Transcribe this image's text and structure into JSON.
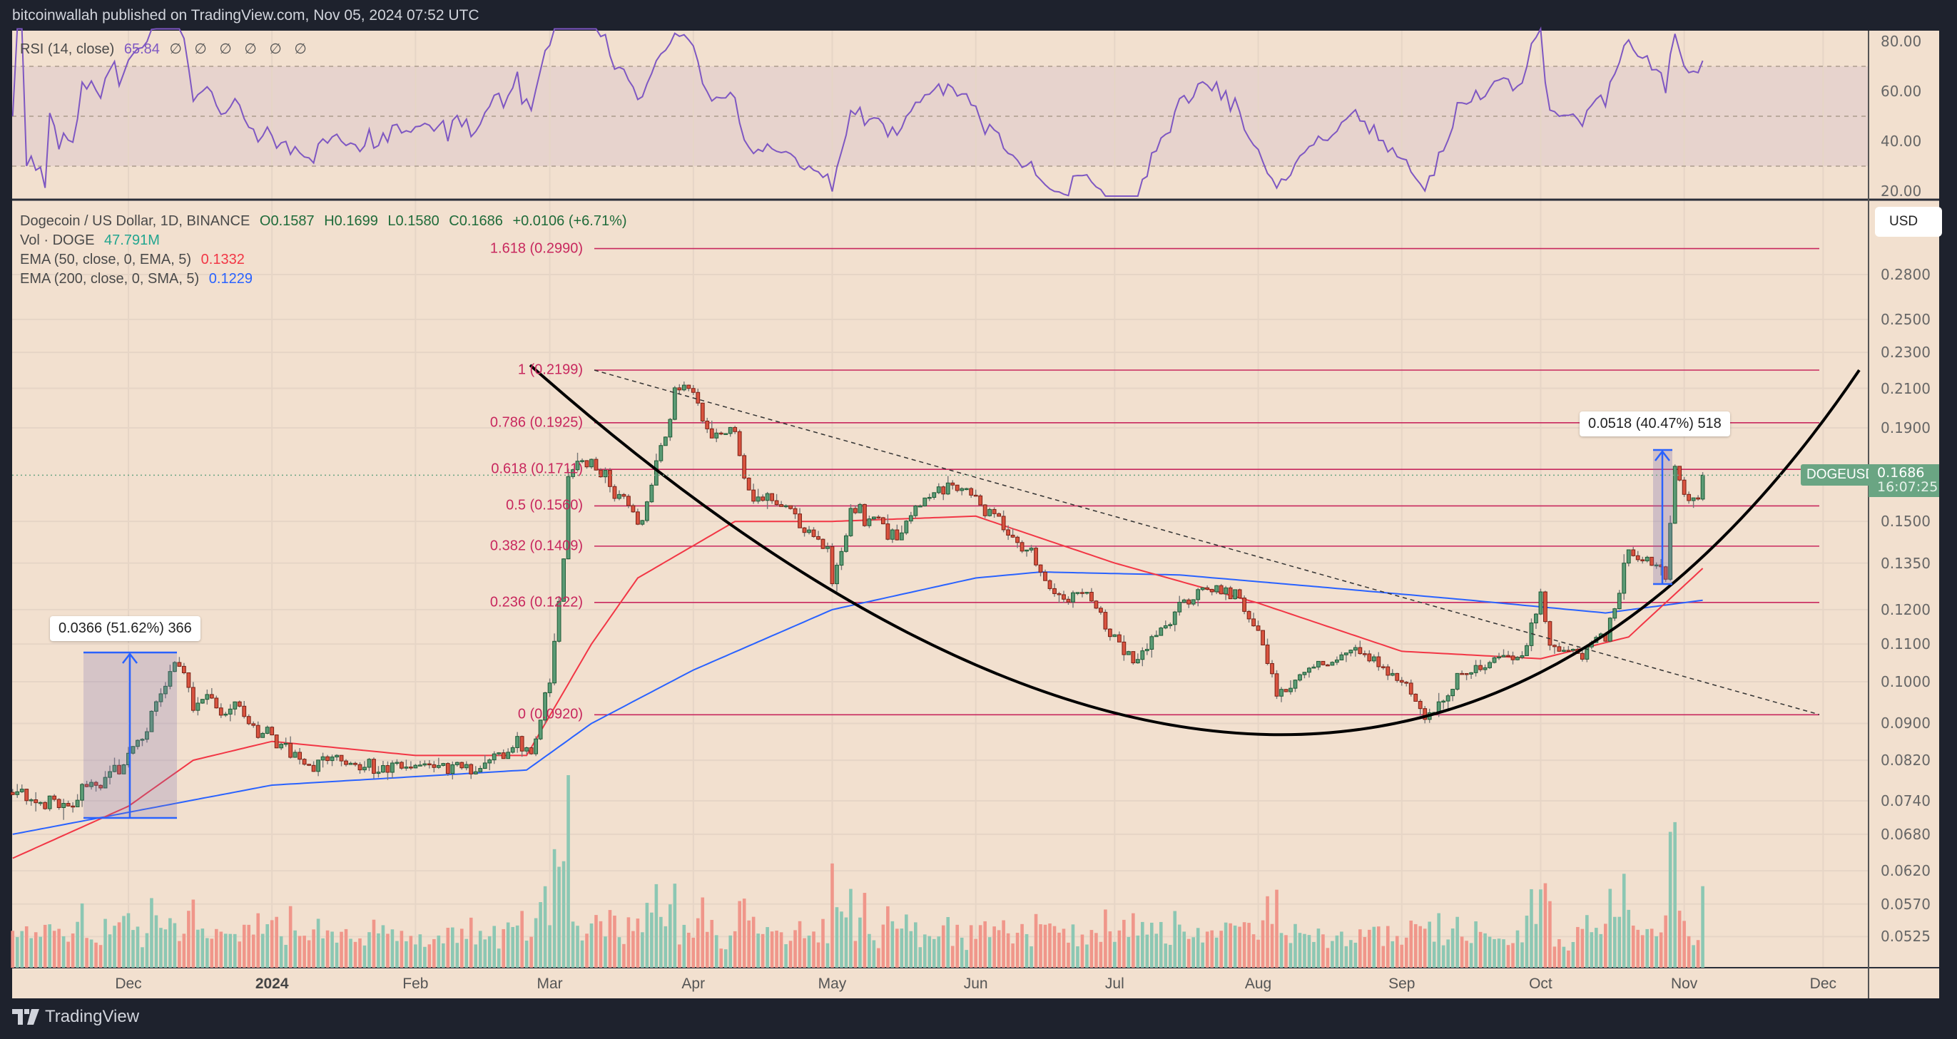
{
  "header": {
    "published": "bitcoinwallah published on TradingView.com, Nov 05, 2024 07:52 UTC"
  },
  "footer": {
    "brand": "TradingView",
    "logo_icon": "tradingview-logo-icon"
  },
  "rsi": {
    "label": "RSI (14, close)",
    "value": "65.84",
    "symbols": "∅ ∅ ∅ ∅ ∅ ∅",
    "ticks": [
      "80.00",
      "60.00",
      "40.00",
      "20.00"
    ],
    "line_color": "#7e57c2"
  },
  "legend": {
    "symbol": "Dogecoin / US Dollar, 1D, BINANCE",
    "open": "O0.1587",
    "high": "H0.1699",
    "low": "L0.1580",
    "close": "C0.1686",
    "change": "+0.0106 (+6.71%)",
    "volume_label": "Vol · DOGE",
    "volume_value": "47.791M",
    "ema50_label": "EMA (50, close, 0, EMA, 5)",
    "ema50_value": "0.1332",
    "ema200_label": "EMA (200, close, 0, SMA, 5)",
    "ema200_value": "0.1229"
  },
  "price_axis": {
    "currency_button": "USD",
    "scale": "log",
    "ticks": [
      "0.2800",
      "0.2500",
      "0.2300",
      "0.2100",
      "0.1900",
      "0.1500",
      "0.1350",
      "0.1200",
      "0.1100",
      "0.1000",
      "0.0900",
      "0.0820",
      "0.0740",
      "0.0680",
      "0.0620",
      "0.0570",
      "0.0525"
    ],
    "symbol_tag": "DOGEUSD",
    "last_price": "0.1686",
    "countdown": "16:07:25"
  },
  "time_axis": {
    "ticks": [
      {
        "label": "Dec",
        "date": "2023-12-01",
        "bold": false
      },
      {
        "label": "2024",
        "date": "2024-01-01",
        "bold": true
      },
      {
        "label": "Feb",
        "date": "2024-02-01",
        "bold": false
      },
      {
        "label": "Mar",
        "date": "2024-03-01",
        "bold": false
      },
      {
        "label": "Apr",
        "date": "2024-04-01",
        "bold": false
      },
      {
        "label": "May",
        "date": "2024-05-01",
        "bold": false
      },
      {
        "label": "Jun",
        "date": "2024-06-01",
        "bold": false
      },
      {
        "label": "Jul",
        "date": "2024-07-01",
        "bold": false
      },
      {
        "label": "Aug",
        "date": "2024-08-01",
        "bold": false
      },
      {
        "label": "Sep",
        "date": "2024-09-01",
        "bold": false
      },
      {
        "label": "Oct",
        "date": "2024-10-01",
        "bold": false
      },
      {
        "label": "Nov",
        "date": "2024-11-01",
        "bold": false
      },
      {
        "label": "Dec",
        "date": "2024-12-01",
        "bold": false
      }
    ]
  },
  "fib_levels": [
    {
      "label": "1.618 (0.2990)",
      "price": 0.299
    },
    {
      "label": "1 (0.2199)",
      "price": 0.2199
    },
    {
      "label": "0.786 (0.1925)",
      "price": 0.1925
    },
    {
      "label": "0.618 (0.1711)",
      "price": 0.1711
    },
    {
      "label": "0.5 (0.1560)",
      "price": 0.156
    },
    {
      "label": "0.382 (0.1409)",
      "price": 0.1409
    },
    {
      "label": "0.236 (0.1222)",
      "price": 0.1222
    },
    {
      "label": "0 (0.0920)",
      "price": 0.092
    }
  ],
  "measurements": [
    {
      "label": "0.0366 (51.62%) 366"
    },
    {
      "label": "0.0518 (40.47%) 518"
    }
  ],
  "colors": {
    "background": "#f2e0cf",
    "up": "#5b9b75",
    "down": "#d9533f",
    "vol_up": "#8cc7b3",
    "vol_down": "#f0968a",
    "ema50": "#f23645",
    "ema200": "#2962ff",
    "fib": "#c8285e",
    "last_price": "#6aa583"
  },
  "chart_data": {
    "type": "candlestick",
    "symbol": "DOGEUSD",
    "interval": "1D",
    "y_scale": "log",
    "ylim": [
      0.049,
      0.31
    ],
    "xlim": [
      "2023-11-06",
      "2024-12-10"
    ],
    "last_candle": {
      "date": "2024-11-05",
      "open": 0.1587,
      "high": 0.1699,
      "low": 0.158,
      "close": 0.1686
    },
    "close_path": [
      [
        "2023-11-06",
        0.0756
      ],
      [
        "2023-11-17",
        0.0716
      ],
      [
        "2023-11-20",
        0.074
      ],
      [
        "2023-12-01",
        0.082
      ],
      [
        "2023-12-10",
        0.1006
      ],
      [
        "2023-12-12",
        0.104
      ],
      [
        "2023-12-15",
        0.096
      ],
      [
        "2023-12-25",
        0.092
      ],
      [
        "2024-01-03",
        0.085
      ],
      [
        "2024-01-08",
        0.08
      ],
      [
        "2024-01-15",
        0.082
      ],
      [
        "2024-01-25",
        0.08
      ],
      [
        "2024-02-10",
        0.08
      ],
      [
        "2024-02-20",
        0.083
      ],
      [
        "2024-02-26",
        0.086
      ],
      [
        "2024-03-01",
        0.1
      ],
      [
        "2024-03-04",
        0.139
      ],
      [
        "2024-03-05",
        0.17
      ],
      [
        "2024-03-10",
        0.178
      ],
      [
        "2024-03-20",
        0.145
      ],
      [
        "2024-03-28",
        0.21
      ],
      [
        "2024-04-01",
        0.205
      ],
      [
        "2024-04-05",
        0.183
      ],
      [
        "2024-04-10",
        0.189
      ],
      [
        "2024-04-13",
        0.159
      ],
      [
        "2024-04-20",
        0.156
      ],
      [
        "2024-04-30",
        0.139
      ],
      [
        "2024-05-01",
        0.127
      ],
      [
        "2024-05-05",
        0.154
      ],
      [
        "2024-05-15",
        0.145
      ],
      [
        "2024-05-20",
        0.16
      ],
      [
        "2024-05-25",
        0.166
      ],
      [
        "2024-06-01",
        0.159
      ],
      [
        "2024-06-07",
        0.149
      ],
      [
        "2024-06-12",
        0.139
      ],
      [
        "2024-06-17",
        0.127
      ],
      [
        "2024-06-25",
        0.123
      ],
      [
        "2024-07-05",
        0.105
      ],
      [
        "2024-07-08",
        0.108
      ],
      [
        "2024-07-20",
        0.129
      ],
      [
        "2024-07-25",
        0.127
      ],
      [
        "2024-08-01",
        0.116
      ],
      [
        "2024-08-05",
        0.098
      ],
      [
        "2024-08-10",
        0.102
      ],
      [
        "2024-08-22",
        0.108
      ],
      [
        "2024-09-01",
        0.099
      ],
      [
        "2024-09-06",
        0.094
      ],
      [
        "2024-09-15",
        0.102
      ],
      [
        "2024-09-27",
        0.107
      ],
      [
        "2024-10-01",
        0.123
      ],
      [
        "2024-10-03",
        0.11
      ],
      [
        "2024-10-10",
        0.107
      ],
      [
        "2024-10-15",
        0.112
      ],
      [
        "2024-10-20",
        0.137
      ],
      [
        "2024-10-25",
        0.139
      ],
      [
        "2024-10-28",
        0.129
      ],
      [
        "2024-10-30",
        0.172
      ],
      [
        "2024-11-01",
        0.16
      ],
      [
        "2024-11-04",
        0.1587
      ]
    ],
    "ema50_path": [
      [
        "2023-11-06",
        0.064
      ],
      [
        "2023-12-01",
        0.073
      ],
      [
        "2023-12-15",
        0.082
      ],
      [
        "2024-01-01",
        0.086
      ],
      [
        "2024-02-01",
        0.083
      ],
      [
        "2024-02-25",
        0.083
      ],
      [
        "2024-03-10",
        0.11
      ],
      [
        "2024-03-20",
        0.13
      ],
      [
        "2024-04-10",
        0.15
      ],
      [
        "2024-05-01",
        0.15
      ],
      [
        "2024-06-01",
        0.152
      ],
      [
        "2024-07-01",
        0.135
      ],
      [
        "2024-08-01",
        0.122
      ],
      [
        "2024-09-01",
        0.108
      ],
      [
        "2024-10-01",
        0.106
      ],
      [
        "2024-10-20",
        0.112
      ],
      [
        "2024-11-05",
        0.1332
      ]
    ],
    "ema200_path": [
      [
        "2023-11-06",
        0.068
      ],
      [
        "2024-01-01",
        0.077
      ],
      [
        "2024-02-25",
        0.08
      ],
      [
        "2024-03-10",
        0.09
      ],
      [
        "2024-04-01",
        0.103
      ],
      [
        "2024-05-01",
        0.12
      ],
      [
        "2024-06-01",
        0.13
      ],
      [
        "2024-06-15",
        0.132
      ],
      [
        "2024-07-15",
        0.131
      ],
      [
        "2024-08-15",
        0.127
      ],
      [
        "2024-09-15",
        0.123
      ],
      [
        "2024-10-15",
        0.119
      ],
      [
        "2024-11-05",
        0.1229
      ]
    ]
  }
}
